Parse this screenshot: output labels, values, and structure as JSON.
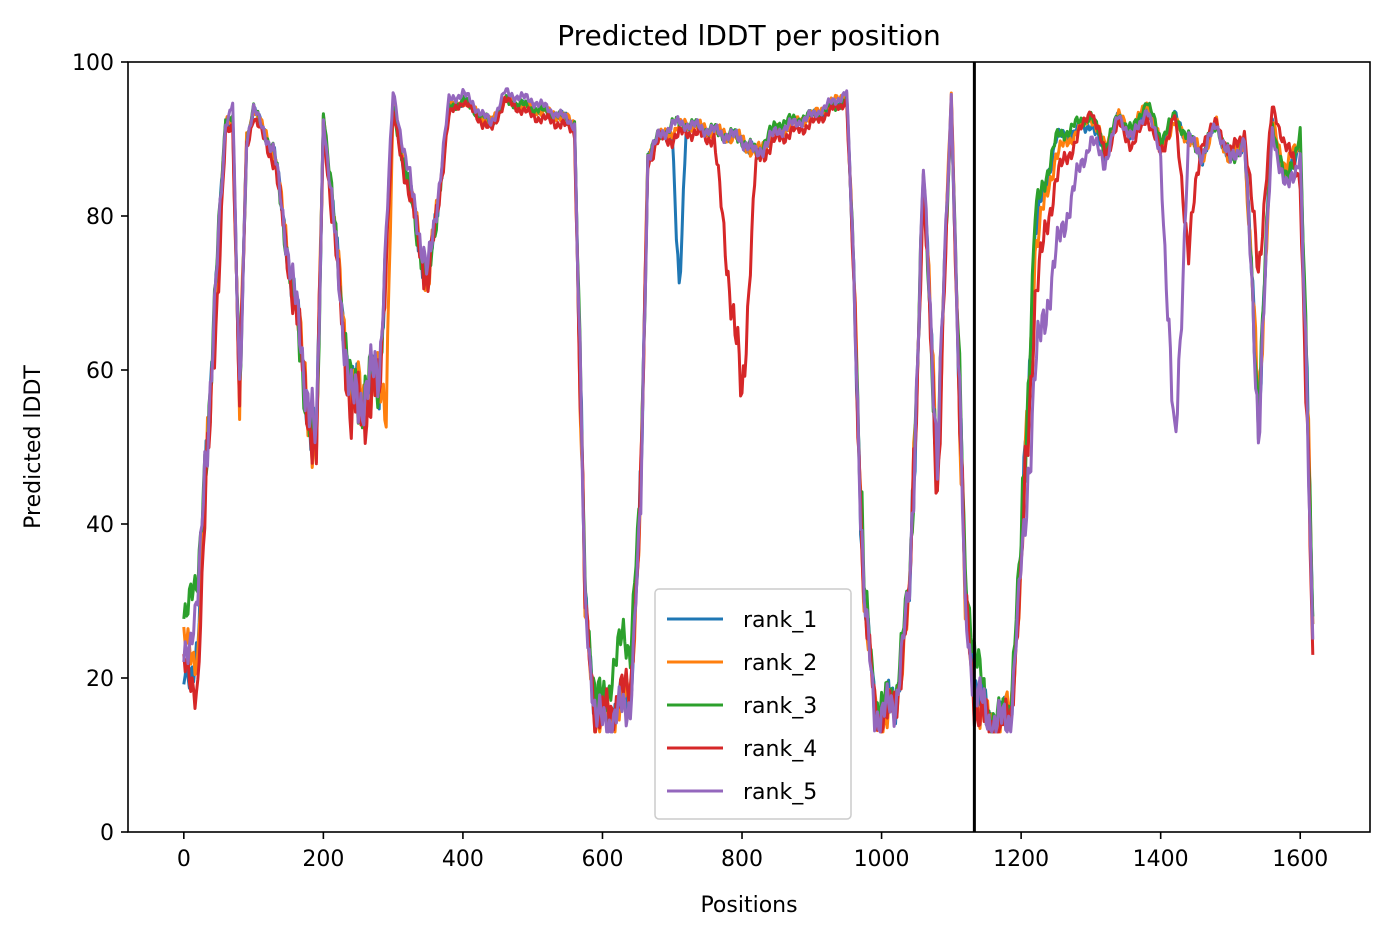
{
  "chart_data": {
    "type": "line",
    "title": "Predicted lDDT per position",
    "xlabel": "Positions",
    "ylabel": "Predicted lDDT",
    "xlim": [
      -80,
      1700
    ],
    "ylim": [
      0,
      100
    ],
    "xticks": [
      0,
      200,
      400,
      600,
      800,
      1000,
      1200,
      1400,
      1600
    ],
    "yticks": [
      0,
      20,
      40,
      60,
      80,
      100
    ],
    "grid": false,
    "legend_position": "lower-center",
    "vline": {
      "x": 1133,
      "color": "#000000"
    },
    "series": [
      {
        "name": "rank_1",
        "color": "#1f77b4",
        "offset": 0.6,
        "x": [
          0,
          20,
          40,
          60,
          70,
          80,
          90,
          100,
          130,
          190,
          200,
          240,
          280,
          300,
          350,
          380,
          400,
          440,
          460,
          500,
          540,
          560,
          575,
          590,
          600,
          620,
          640,
          655,
          665,
          680,
          700,
          710,
          720,
          760,
          800,
          820,
          850,
          900,
          950,
          960,
          975,
          990,
          1000,
          1020,
          1040,
          1060,
          1080,
          1100,
          1120,
          1133,
          1150,
          1170,
          1185,
          1200,
          1220,
          1250,
          1280,
          1300,
          1320,
          1340,
          1360,
          1380,
          1400,
          1420,
          1440,
          1460,
          1480,
          1500,
          1520,
          1540,
          1560,
          1580,
          1600,
          1618
        ],
        "y": [
          19,
          24,
          62,
          92,
          93,
          55,
          90,
          94,
          88,
          48,
          93,
          56,
          58,
          94,
          71,
          94,
          95,
          92,
          95,
          94,
          93,
          92,
          30,
          16,
          15,
          16,
          18,
          42,
          88,
          90,
          91,
          68,
          92,
          91,
          90,
          88,
          91,
          93,
          95,
          72,
          30,
          17,
          16,
          17,
          30,
          85,
          48,
          95,
          30,
          20,
          15,
          14,
          16,
          35,
          78,
          90,
          91,
          92,
          88,
          93,
          90,
          94,
          89,
          93,
          90,
          88,
          92,
          87,
          90,
          55,
          92,
          84,
          90,
          27
        ]
      },
      {
        "name": "rank_2",
        "color": "#ff7f0e",
        "offset": 0.3,
        "x": [
          0,
          20,
          40,
          60,
          70,
          80,
          90,
          100,
          130,
          190,
          200,
          240,
          280,
          290,
          300,
          350,
          380,
          400,
          440,
          460,
          500,
          540,
          560,
          575,
          590,
          600,
          620,
          640,
          655,
          665,
          680,
          700,
          720,
          760,
          800,
          820,
          850,
          900,
          950,
          960,
          975,
          990,
          1000,
          1020,
          1040,
          1060,
          1080,
          1100,
          1120,
          1133,
          1150,
          1170,
          1185,
          1200,
          1220,
          1250,
          1280,
          1300,
          1320,
          1340,
          1360,
          1380,
          1400,
          1420,
          1440,
          1460,
          1480,
          1500,
          1520,
          1540,
          1560,
          1580,
          1600,
          1618
        ],
        "y": [
          24,
          23,
          60,
          92,
          93,
          55,
          90,
          94,
          88,
          48,
          93,
          56,
          58,
          57,
          94,
          71,
          94,
          95,
          92,
          95,
          94,
          93,
          92,
          28,
          15,
          14,
          16,
          18,
          42,
          88,
          90,
          91,
          92,
          91,
          90,
          88,
          91,
          93,
          96,
          72,
          30,
          16,
          14,
          16,
          30,
          85,
          48,
          96,
          28,
          18,
          14,
          14,
          16,
          33,
          76,
          88,
          91,
          93,
          89,
          93,
          91,
          95,
          89,
          92,
          90,
          88,
          92,
          87,
          90,
          55,
          92,
          86,
          90,
          27
        ]
      },
      {
        "name": "rank_3",
        "color": "#2ca02c",
        "offset": 0.9,
        "x": [
          0,
          10,
          20,
          40,
          60,
          70,
          80,
          90,
          100,
          130,
          190,
          200,
          240,
          280,
          300,
          350,
          380,
          400,
          440,
          460,
          500,
          540,
          560,
          575,
          590,
          600,
          620,
          630,
          640,
          655,
          665,
          680,
          700,
          720,
          760,
          800,
          820,
          850,
          900,
          950,
          960,
          975,
          990,
          1000,
          1020,
          1040,
          1060,
          1080,
          1100,
          1120,
          1133,
          1150,
          1170,
          1185,
          1200,
          1220,
          1250,
          1280,
          1300,
          1320,
          1340,
          1360,
          1380,
          1400,
          1420,
          1440,
          1460,
          1480,
          1500,
          1520,
          1540,
          1560,
          1580,
          1600,
          1618
        ],
        "y": [
          27,
          33,
          31,
          62,
          93,
          93,
          55,
          90,
          94,
          88,
          47,
          94,
          56,
          59,
          94,
          71,
          94,
          95,
          92,
          95,
          94,
          93,
          92,
          32,
          17,
          17,
          22,
          26,
          24,
          44,
          88,
          90,
          92,
          92,
          91,
          90,
          88,
          92,
          93,
          95,
          74,
          32,
          18,
          16,
          18,
          32,
          85,
          48,
          95,
          33,
          24,
          16,
          14,
          17,
          37,
          80,
          90,
          92,
          93,
          89,
          93,
          91,
          95,
          90,
          93,
          90,
          88,
          92,
          87,
          90,
          55,
          92,
          84,
          91,
          28
        ]
      },
      {
        "name": "rank_4",
        "color": "#d62728",
        "offset": 0.4,
        "x": [
          0,
          20,
          40,
          50,
          60,
          70,
          80,
          90,
          100,
          130,
          190,
          200,
          240,
          280,
          300,
          350,
          380,
          400,
          440,
          460,
          500,
          540,
          560,
          575,
          590,
          600,
          620,
          640,
          655,
          665,
          680,
          700,
          720,
          760,
          800,
          820,
          850,
          900,
          950,
          960,
          975,
          990,
          1000,
          1020,
          1040,
          1060,
          1080,
          1100,
          1120,
          1133,
          1150,
          1170,
          1185,
          1200,
          1220,
          1250,
          1280,
          1300,
          1320,
          1340,
          1360,
          1380,
          1400,
          1420,
          1440,
          1460,
          1480,
          1500,
          1520,
          1540,
          1560,
          1580,
          1600,
          1618
        ],
        "y": [
          21,
          19,
          60,
          71,
          91,
          92,
          55,
          89,
          93,
          87,
          48,
          92,
          54,
          57,
          93,
          71,
          93,
          95,
          91,
          95,
          93,
          92,
          91,
          29,
          15,
          15,
          17,
          19,
          42,
          87,
          90,
          90,
          91,
          90,
          56,
          87,
          90,
          92,
          95,
          71,
          30,
          16,
          15,
          16,
          30,
          84,
          45,
          95,
          30,
          17,
          14,
          13,
          15,
          33,
          70,
          85,
          90,
          94,
          88,
          92,
          89,
          93,
          88,
          93,
          76,
          90,
          92,
          88,
          91,
          73,
          94,
          89,
          85,
          23
        ]
      },
      {
        "name": "rank_5",
        "color": "#9467bd",
        "offset": 0.8,
        "x": [
          0,
          20,
          40,
          60,
          70,
          80,
          90,
          100,
          130,
          190,
          200,
          240,
          280,
          300,
          350,
          380,
          400,
          440,
          460,
          500,
          540,
          560,
          575,
          590,
          600,
          620,
          640,
          655,
          665,
          680,
          700,
          720,
          760,
          800,
          820,
          850,
          900,
          950,
          960,
          975,
          990,
          1000,
          1020,
          1040,
          1060,
          1080,
          1100,
          1120,
          1133,
          1150,
          1170,
          1185,
          1200,
          1220,
          1250,
          1280,
          1300,
          1320,
          1340,
          1360,
          1380,
          1400,
          1420,
          1440,
          1460,
          1480,
          1500,
          1520,
          1540,
          1560,
          1580,
          1600,
          1618
        ],
        "y": [
          22,
          30,
          62,
          92,
          95,
          54,
          90,
          94,
          88,
          49,
          93,
          55,
          60,
          96,
          72,
          95,
          96,
          92,
          96,
          95,
          93,
          92,
          30,
          15,
          14,
          15,
          17,
          42,
          88,
          90,
          92,
          92,
          91,
          90,
          88,
          91,
          93,
          96,
          73,
          30,
          16,
          15,
          17,
          31,
          86,
          49,
          96,
          28,
          19,
          15,
          14,
          15,
          34,
          60,
          75,
          85,
          90,
          87,
          93,
          90,
          94,
          88,
          48,
          90,
          88,
          92,
          87,
          90,
          53,
          91,
          83,
          88,
          25
        ]
      }
    ]
  }
}
